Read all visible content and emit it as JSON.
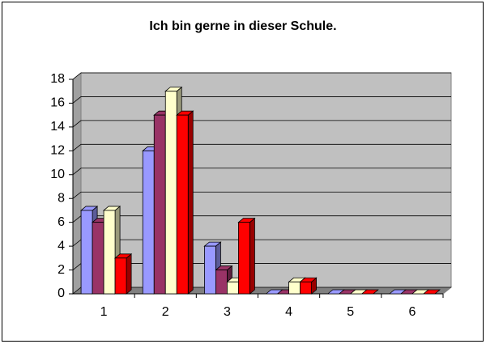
{
  "chart_data": {
    "type": "bar3d",
    "title": "Ich bin gerne in dieser Schule.",
    "categories": [
      "1",
      "2",
      "3",
      "4",
      "5",
      "6"
    ],
    "series": [
      {
        "color": "#9999ff",
        "values": [
          7,
          12,
          4,
          0,
          0,
          0
        ]
      },
      {
        "color": "#993366",
        "values": [
          6,
          15,
          2,
          0,
          0,
          0
        ]
      },
      {
        "color": "#ffffcc",
        "values": [
          7,
          17,
          1,
          1,
          0,
          0
        ]
      },
      {
        "color": "#ff0000",
        "values": [
          3,
          15,
          6,
          1,
          0,
          0
        ]
      }
    ],
    "ylim": [
      0,
      18
    ],
    "yticks": [
      0,
      2,
      4,
      6,
      8,
      10,
      12,
      14,
      16,
      18
    ],
    "grid": true
  }
}
